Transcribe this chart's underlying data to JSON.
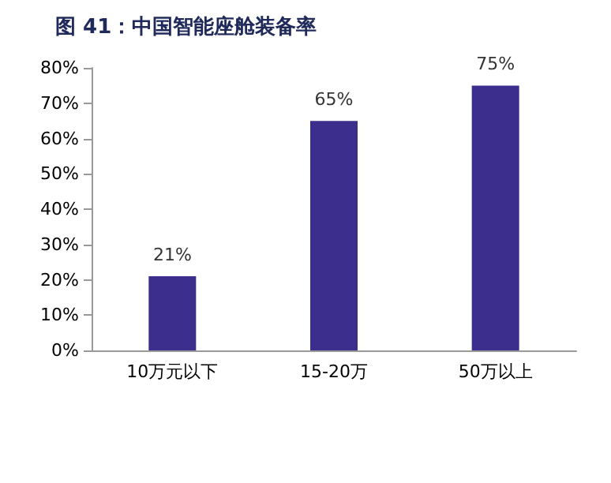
{
  "chart_data": {
    "type": "bar",
    "title": "图 41：中国智能座舱装备率",
    "categories": [
      "10万元以下",
      "15-20万",
      "50万以上"
    ],
    "values": [
      21,
      65,
      75
    ],
    "color": "#3b2e8c",
    "value_labels": [
      "21%",
      "65%",
      "75%"
    ],
    "ylim": [
      0,
      80
    ],
    "yticks": [
      {
        "value": 0,
        "label": "0%"
      },
      {
        "value": 10,
        "label": "10%"
      },
      {
        "value": 20,
        "label": "20%"
      },
      {
        "value": 30,
        "label": "30%"
      },
      {
        "value": 40,
        "label": "40%"
      },
      {
        "value": 50,
        "label": "50%"
      },
      {
        "value": 60,
        "label": "60%"
      },
      {
        "value": 70,
        "label": "70%"
      },
      {
        "value": 80,
        "label": "80%"
      }
    ],
    "grid": false
  }
}
